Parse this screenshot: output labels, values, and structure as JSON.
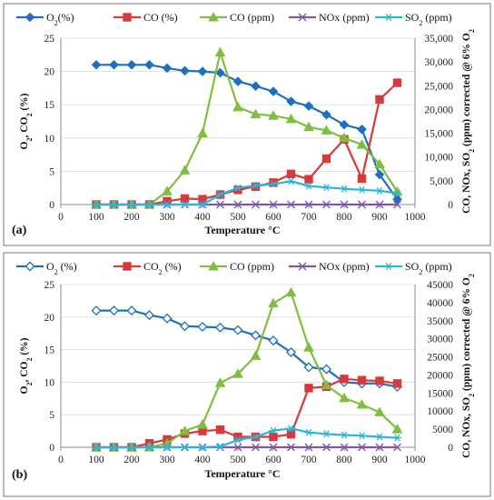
{
  "chart_data": [
    {
      "panel_label": "(a)",
      "type": "line",
      "xlabel": "Temperature °C",
      "ylabel_left": "O2, CO2 (%)",
      "ylabel_right": "CO, NOx, SO2 (ppm) corrected @ 6% O2",
      "xlim": [
        0,
        1000
      ],
      "ylim_left": [
        0,
        25
      ],
      "ylim_right": [
        0,
        35000
      ],
      "x_ticks": [
        "0",
        "100",
        "200",
        "300",
        "400",
        "500",
        "600",
        "700",
        "800",
        "900",
        "1000"
      ],
      "yl_ticks": [
        "0",
        "5",
        "10",
        "15",
        "20",
        "25"
      ],
      "yr_ticks": [
        "0",
        "5,000",
        "10,000",
        "15,000",
        "20,000",
        "25,000",
        "30,000",
        "35,000"
      ],
      "x": [
        100,
        150,
        200,
        250,
        300,
        350,
        400,
        450,
        500,
        550,
        600,
        650,
        700,
        750,
        800,
        850,
        900,
        950
      ],
      "series": [
        {
          "name": "O2(%)",
          "axis": "left",
          "color": "#1f6fc0",
          "marker": "diamond-filled",
          "values": [
            21,
            21,
            21,
            21,
            20.5,
            20.1,
            20,
            19.8,
            18.5,
            17.8,
            17,
            15.5,
            14.8,
            13.5,
            12,
            11.3,
            4.5,
            0.8
          ]
        },
        {
          "name": "CO (%)",
          "axis": "left",
          "color": "#d63b3b",
          "marker": "square",
          "values": [
            0,
            0,
            0,
            0,
            0.5,
            0.9,
            0.8,
            1.5,
            2.2,
            2.7,
            3.3,
            4.6,
            3.8,
            6.9,
            9.8,
            3.9,
            15.8,
            18.3
          ]
        },
        {
          "name": "CO (ppm)",
          "axis": "right",
          "color": "#7fbf3f",
          "marker": "triangle",
          "values": [
            0,
            0,
            0,
            0,
            2800,
            7200,
            15000,
            32000,
            20500,
            19000,
            18700,
            18000,
            16300,
            15600,
            14000,
            12600,
            8500,
            2700
          ]
        },
        {
          "name": "NOx (ppm)",
          "axis": "right",
          "color": "#7e57a6",
          "marker": "x",
          "values": [
            0,
            0,
            0,
            0,
            0,
            0,
            0,
            0,
            0,
            0,
            0,
            0,
            0,
            0,
            0,
            0,
            0,
            0
          ]
        },
        {
          "name": "SO2 (ppm)",
          "axis": "right",
          "color": "#2bb5d8",
          "marker": "star",
          "values": [
            0,
            0,
            0,
            0,
            0,
            0,
            0,
            2100,
            3500,
            4000,
            4300,
            4900,
            3900,
            3600,
            3300,
            3100,
            2900,
            2400
          ]
        }
      ]
    },
    {
      "panel_label": "(b)",
      "type": "line",
      "xlabel": "Temperature °C",
      "ylabel_left": "O2, CO2 (%)",
      "ylabel_right": "CO, NOx, SO2 (ppm) corrected @ 6% O2",
      "xlim": [
        0,
        1000
      ],
      "ylim_left": [
        0,
        25
      ],
      "ylim_right": [
        0,
        45000
      ],
      "x_ticks": [
        "0",
        "100",
        "200",
        "300",
        "400",
        "500",
        "600",
        "700",
        "800",
        "900",
        "1000"
      ],
      "yl_ticks": [
        "0",
        "5",
        "10",
        "15",
        "20",
        "25"
      ],
      "yr_ticks": [
        "0",
        "5000",
        "10000",
        "15000",
        "20000",
        "25000",
        "30000",
        "35000",
        "40000",
        "45000"
      ],
      "x": [
        100,
        150,
        200,
        250,
        300,
        350,
        400,
        450,
        500,
        550,
        600,
        650,
        700,
        750,
        800,
        850,
        900,
        950
      ],
      "series": [
        {
          "name": "O2 (%)",
          "axis": "left",
          "color": "#1f6fc0",
          "marker": "diamond-open",
          "values": [
            21,
            21,
            21,
            20.3,
            19.8,
            18.6,
            18.5,
            18.4,
            18,
            17.2,
            16.4,
            14.6,
            12.3,
            12,
            10,
            9.8,
            9.8,
            9.3
          ]
        },
        {
          "name": "CO2 (%)",
          "axis": "left",
          "color": "#d63b3b",
          "marker": "square",
          "values": [
            0,
            0,
            0,
            0.6,
            1.2,
            2.1,
            2.5,
            2.7,
            1.6,
            1.6,
            1.6,
            2,
            9.1,
            9.3,
            10.5,
            10.3,
            10.2,
            9.8
          ]
        },
        {
          "name": "CO (ppm)",
          "axis": "right",
          "color": "#7fbf3f",
          "marker": "triangle",
          "values": [
            0,
            0,
            0,
            0,
            1000,
            4500,
            6300,
            17800,
            20300,
            25300,
            39800,
            42800,
            27600,
            17200,
            13600,
            11800,
            9700,
            5000
          ]
        },
        {
          "name": "NOx (ppm)",
          "axis": "right",
          "color": "#7e57a6",
          "marker": "x",
          "values": [
            0,
            0,
            0,
            0,
            0,
            0,
            0,
            0,
            0,
            0,
            0,
            0,
            0,
            0,
            0,
            0,
            0,
            0
          ]
        },
        {
          "name": "SO2 (ppm)",
          "axis": "right",
          "color": "#2bb5d8",
          "marker": "star",
          "values": [
            0,
            0,
            0,
            0,
            0,
            0,
            0,
            200,
            2000,
            2900,
            4600,
            5200,
            4100,
            3700,
            3400,
            3200,
            2900,
            2600
          ]
        }
      ]
    }
  ]
}
